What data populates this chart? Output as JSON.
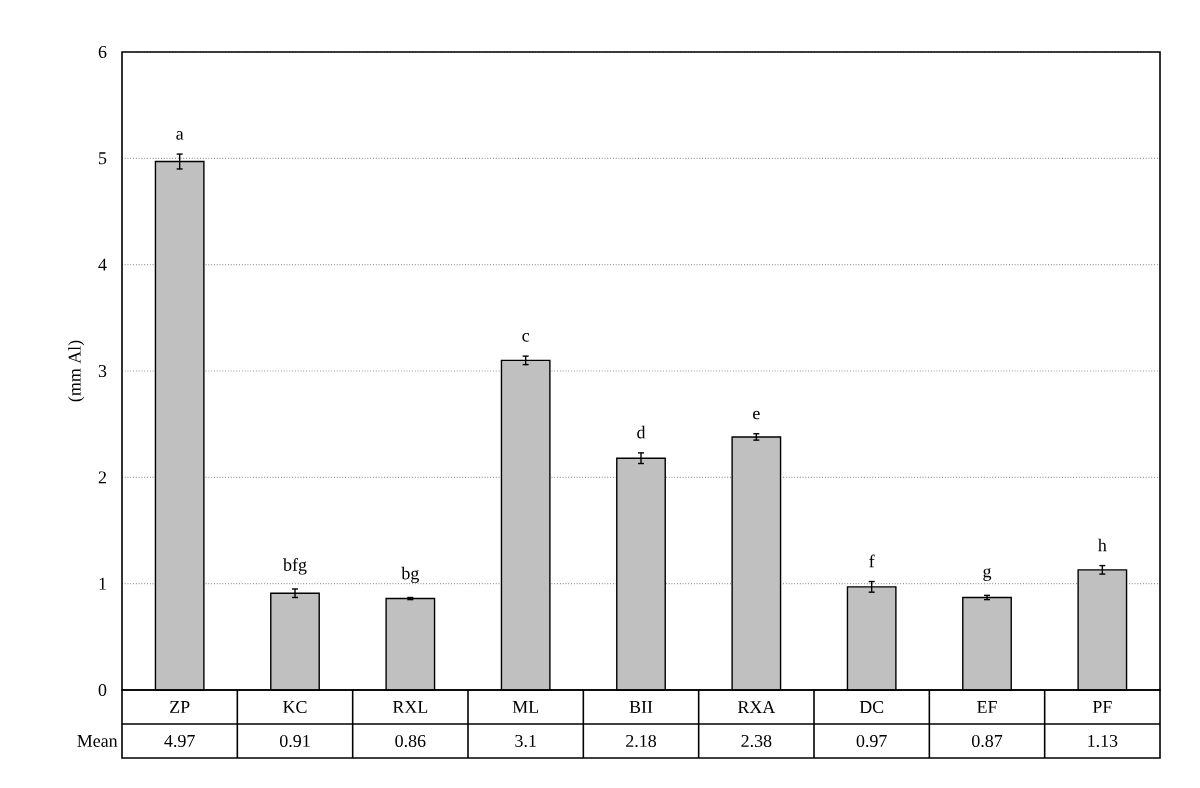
{
  "chart_data": {
    "type": "bar",
    "ylabel": "(mm Al)",
    "categories": [
      "ZP",
      "KC",
      "RXL",
      "ML",
      "BII",
      "RXA",
      "DC",
      "EF",
      "PF"
    ],
    "values": [
      4.97,
      0.91,
      0.86,
      3.1,
      2.18,
      2.38,
      0.97,
      0.87,
      1.13
    ],
    "errors": [
      0.07,
      0.04,
      0.01,
      0.04,
      0.05,
      0.03,
      0.05,
      0.02,
      0.04
    ],
    "color": "#c0c0c0",
    "ylim": [
      0,
      6
    ],
    "yticks": [
      0,
      1,
      2,
      3,
      4,
      5,
      6
    ],
    "grid": "y",
    "data_labels": true,
    "annotations": [
      "Mean",
      {
        "text": "a",
        "x": "ZP",
        "y": 4.97
      },
      {
        "text": "bfg",
        "x": "KC",
        "y": 0.91
      },
      {
        "text": "bg",
        "x": "RXL",
        "y": 0.86
      },
      {
        "text": "c",
        "x": "ML",
        "y": 3.1
      },
      {
        "text": "d",
        "x": "BII",
        "y": 2.18
      },
      {
        "text": "e",
        "x": "RXA",
        "y": 2.38
      },
      {
        "text": "f",
        "x": "DC",
        "y": 0.97
      },
      {
        "text": "g",
        "x": "EF",
        "y": 0.87
      },
      {
        "text": "h",
        "x": "PF",
        "y": 1.13
      }
    ]
  }
}
